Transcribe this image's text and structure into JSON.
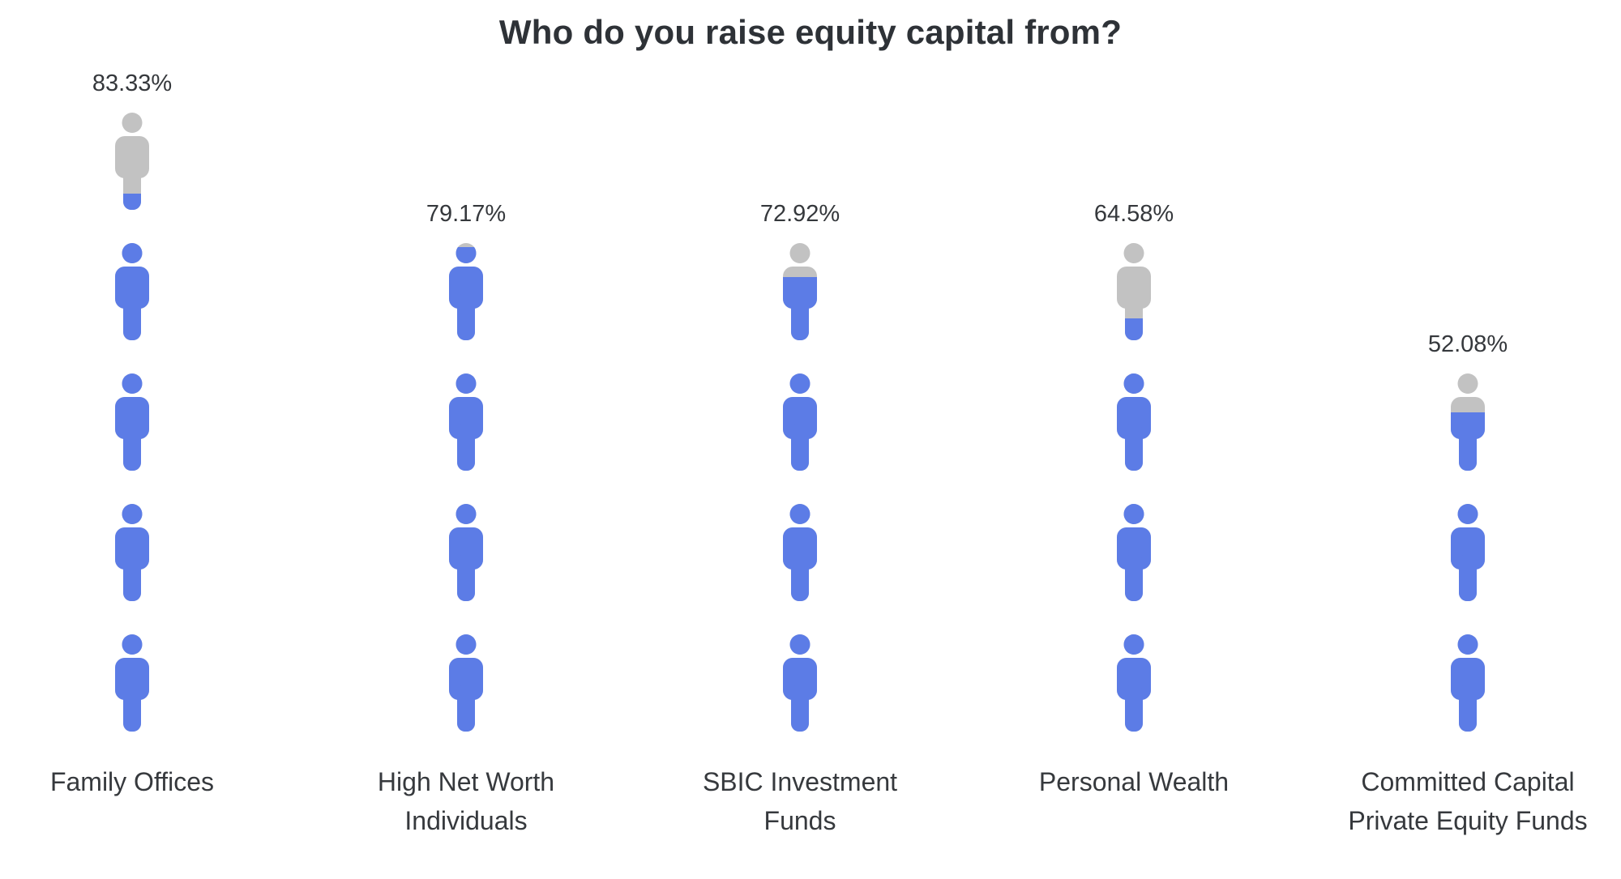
{
  "title": "Who do you raise equity capital from?",
  "chart_data": {
    "type": "pictogram-bar",
    "title": "Who do you raise equity capital from?",
    "icon": "person-icon",
    "unit_percent_per_icon": 20,
    "max_icons_per_column": 5,
    "fill_direction": "bottom-up",
    "legend": "none",
    "grid": false,
    "categories": [
      "Family Offices",
      "High Net Worth Individuals",
      "SBIC Investment Funds",
      "Personal Wealth",
      "Committed Capital Private Equity Funds"
    ],
    "values": [
      83.33,
      79.17,
      72.92,
      64.58,
      52.08
    ],
    "value_labels": [
      "83.33%",
      "79.17%",
      "72.92%",
      "64.58%",
      "52.08%"
    ],
    "colors": {
      "filled": "#5c7ce6",
      "unfilled": "#c2c2c2",
      "title_text": "#2e3237",
      "label_text": "#36393d",
      "background": "#ffffff"
    }
  }
}
